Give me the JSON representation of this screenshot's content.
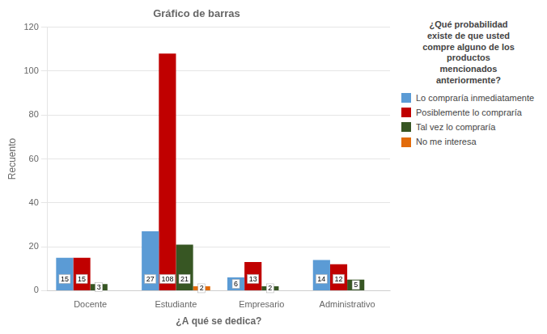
{
  "chart_data": {
    "type": "bar",
    "title": "Gráfico de barras",
    "xlabel": "¿A qué se dedica?",
    "ylabel": "Recuento",
    "categories": [
      "Docente",
      "Estudiante",
      "Empresario",
      "Administrativo"
    ],
    "series": [
      {
        "name": "Lo compraría inmediatamente",
        "color": "#5B9BD5",
        "values": [
          15,
          27,
          6,
          14
        ]
      },
      {
        "name": "Posiblemente lo compraría",
        "color": "#C00000",
        "values": [
          15,
          108,
          13,
          12
        ]
      },
      {
        "name": "Tal vez lo compraría",
        "color": "#375623",
        "values": [
          3,
          21,
          2,
          5
        ]
      },
      {
        "name": "No me interesa",
        "color": "#E26B0A",
        "values": [
          0,
          2,
          0,
          0
        ],
        "value_labels": [
          null,
          "2",
          null,
          null
        ]
      }
    ],
    "legend_title": "¿Qué probabilidad\nexiste de que usted\ncompre alguno de los\nproductos\nmencionados\nanteriormente?",
    "ylim": [
      0,
      120
    ],
    "yticks": [
      0,
      20,
      40,
      60,
      80,
      100,
      120
    ],
    "grid": true,
    "data_labels": true,
    "legend": "right"
  }
}
